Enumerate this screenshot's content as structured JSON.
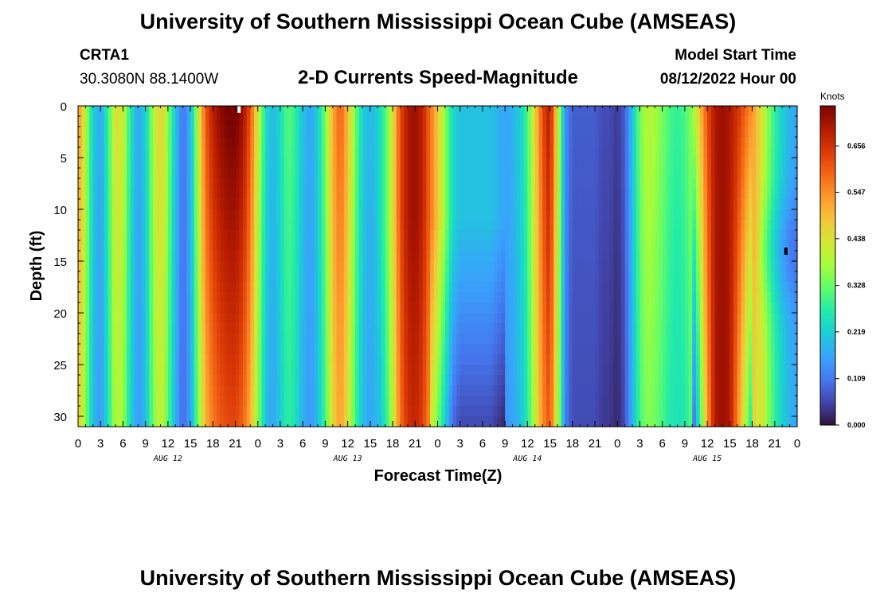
{
  "header": {
    "title": "University of Southern Mississippi Ocean Cube (AMSEAS)",
    "station": "CRTA1",
    "coords": "30.3080N  88.1400W",
    "subtitle": "2-D Currents Speed-Magnitude",
    "model_label": "Model Start Time",
    "model_time": "08/12/2022 Hour 00"
  },
  "footer": {
    "title": "University of Southern Mississippi Ocean Cube (AMSEAS)"
  },
  "chart_data": {
    "type": "heatmap",
    "title": "2-D Currents Speed-Magnitude",
    "xlabel": "Forecast Time(Z)",
    "ylabel": "Depth (ft)",
    "units": "Knots",
    "xlim": [
      0,
      96
    ],
    "ylim": [
      31,
      0
    ],
    "x_ticks": [
      {
        "hour": 0,
        "label": "0"
      },
      {
        "hour": 3,
        "label": "3"
      },
      {
        "hour": 6,
        "label": "6"
      },
      {
        "hour": 9,
        "label": "9"
      },
      {
        "hour": 12,
        "label": "12"
      },
      {
        "hour": 15,
        "label": "15"
      },
      {
        "hour": 18,
        "label": "18"
      },
      {
        "hour": 21,
        "label": "21"
      },
      {
        "hour": 24,
        "label": "0"
      },
      {
        "hour": 27,
        "label": "3"
      },
      {
        "hour": 30,
        "label": "6"
      },
      {
        "hour": 33,
        "label": "9"
      },
      {
        "hour": 36,
        "label": "12"
      },
      {
        "hour": 39,
        "label": "15"
      },
      {
        "hour": 42,
        "label": "18"
      },
      {
        "hour": 45,
        "label": "21"
      },
      {
        "hour": 48,
        "label": "0"
      },
      {
        "hour": 51,
        "label": "3"
      },
      {
        "hour": 54,
        "label": "6"
      },
      {
        "hour": 57,
        "label": "9"
      },
      {
        "hour": 60,
        "label": "12"
      },
      {
        "hour": 63,
        "label": "15"
      },
      {
        "hour": 66,
        "label": "18"
      },
      {
        "hour": 69,
        "label": "21"
      },
      {
        "hour": 72,
        "label": "0"
      },
      {
        "hour": 75,
        "label": "3"
      },
      {
        "hour": 78,
        "label": "6"
      },
      {
        "hour": 81,
        "label": "9"
      },
      {
        "hour": 84,
        "label": "12"
      },
      {
        "hour": 87,
        "label": "15"
      },
      {
        "hour": 90,
        "label": "18"
      },
      {
        "hour": 93,
        "label": "21"
      },
      {
        "hour": 96,
        "label": "0"
      }
    ],
    "day_labels": [
      {
        "hour": 12,
        "label": "AUG 12"
      },
      {
        "hour": 36,
        "label": "AUG 13"
      },
      {
        "hour": 60,
        "label": "AUG 14"
      },
      {
        "hour": 84,
        "label": "AUG 15"
      }
    ],
    "y_ticks": [
      {
        "depth": 0,
        "label": "0"
      },
      {
        "depth": 5,
        "label": "5"
      },
      {
        "depth": 10,
        "label": "10"
      },
      {
        "depth": 15,
        "label": "15"
      },
      {
        "depth": 20,
        "label": "20"
      },
      {
        "depth": 25,
        "label": "25"
      },
      {
        "depth": 30,
        "label": "30"
      }
    ],
    "colorbar": {
      "min": 0,
      "max": 0.75,
      "ticks": [
        {
          "value": 0.0,
          "label": "0.000"
        },
        {
          "value": 0.109,
          "label": "0.109"
        },
        {
          "value": 0.219,
          "label": "0.219"
        },
        {
          "value": 0.328,
          "label": "0.328"
        },
        {
          "value": 0.438,
          "label": "0.438"
        },
        {
          "value": 0.547,
          "label": "0.547"
        },
        {
          "value": 0.656,
          "label": "0.656"
        }
      ]
    },
    "surface_speed_by_hour": [
      0.55,
      0.4,
      0.22,
      0.16,
      0.28,
      0.45,
      0.42,
      0.26,
      0.16,
      0.22,
      0.38,
      0.48,
      0.36,
      0.2,
      0.1,
      0.18,
      0.4,
      0.6,
      0.68,
      0.72,
      0.74,
      0.74,
      0.7,
      0.6,
      0.42,
      0.24,
      0.18,
      0.24,
      0.32,
      0.28,
      0.2,
      0.16,
      0.22,
      0.34,
      0.52,
      0.6,
      0.5,
      0.34,
      0.22,
      0.18,
      0.22,
      0.3,
      0.44,
      0.62,
      0.7,
      0.72,
      0.68,
      0.58,
      0.48,
      0.36,
      0.24,
      0.2,
      0.2,
      0.2,
      0.2,
      0.2,
      0.18,
      0.16,
      0.18,
      0.22,
      0.3,
      0.46,
      0.62,
      0.7,
      0.44,
      0.14,
      0.08,
      0.08,
      0.08,
      0.08,
      0.06,
      0.06,
      0.04,
      0.08,
      0.2,
      0.34,
      0.4,
      0.38,
      0.34,
      0.3,
      0.28,
      0.3,
      0.36,
      0.48,
      0.62,
      0.7,
      0.72,
      0.7,
      0.66,
      0.6,
      0.54,
      0.46,
      0.36,
      0.28,
      0.22,
      0.18,
      0.16
    ],
    "annotations": [
      {
        "type": "marker",
        "hour": 21.5,
        "depth": 0.3,
        "color": "#ffffff"
      },
      {
        "type": "marker",
        "hour": 94.5,
        "depth": 14,
        "color": "#000000"
      }
    ]
  }
}
